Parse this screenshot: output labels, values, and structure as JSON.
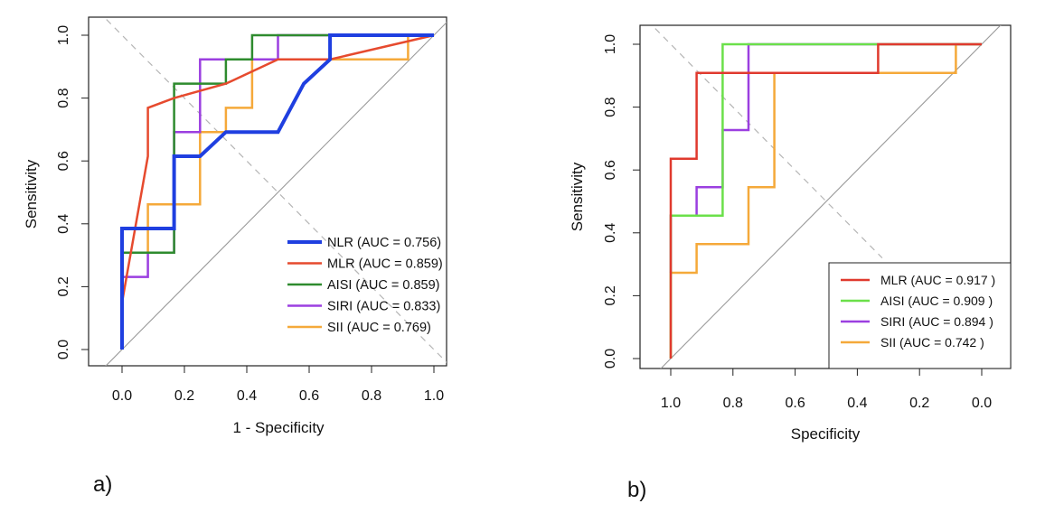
{
  "chart_data": [
    {
      "panel_label": "a)",
      "type": "line",
      "xlabel": "1 - Specificity",
      "ylabel": "Sensitivity",
      "xlim": [
        0,
        1
      ],
      "ylim": [
        0,
        1
      ],
      "x_ticks": [
        "0.0",
        "0.2",
        "0.4",
        "0.6",
        "0.8",
        "1.0"
      ],
      "y_ticks": [
        "0.0",
        "0.2",
        "0.4",
        "0.6",
        "0.8",
        "1.0"
      ],
      "legend_position": "bottom-right",
      "series": [
        {
          "name": "NLR (AUC = 0.756)",
          "color": "#1f3fe0",
          "width": 4,
          "x": [
            0,
            0,
            0.167,
            0.167,
            0.25,
            0.333,
            0.5,
            0.583,
            0.667,
            0.667,
            1
          ],
          "y": [
            0,
            0.385,
            0.385,
            0.615,
            0.615,
            0.692,
            0.692,
            0.846,
            0.923,
            1,
            1
          ]
        },
        {
          "name": "MLR (AUC = 0.859)",
          "color": "#e64a2e",
          "width": 2.5,
          "x": [
            0,
            0.083,
            0.083,
            0.167,
            0.333,
            0.5,
            0.667,
            1
          ],
          "y": [
            0.15,
            0.615,
            0.769,
            0.8,
            0.846,
            0.923,
            0.923,
            1
          ]
        },
        {
          "name": "AISI (AUC = 0.859)",
          "color": "#2e8b2e",
          "width": 2.5,
          "x": [
            0,
            0,
            0.167,
            0.167,
            0.333,
            0.333,
            0.417,
            0.417,
            1
          ],
          "y": [
            0,
            0.308,
            0.308,
            0.846,
            0.846,
            0.923,
            0.923,
            1,
            1
          ]
        },
        {
          "name": "SIRI (AUC = 0.833)",
          "color": "#9b3fe0",
          "width": 2.5,
          "x": [
            0,
            0,
            0.083,
            0.083,
            0.167,
            0.167,
            0.25,
            0.25,
            0.5,
            0.5,
            1
          ],
          "y": [
            0,
            0.231,
            0.231,
            0.308,
            0.308,
            0.692,
            0.692,
            0.923,
            0.923,
            1,
            1
          ]
        },
        {
          "name": "SII (AUC = 0.769)",
          "color": "#f5a93a",
          "width": 2.5,
          "x": [
            0,
            0,
            0.083,
            0.083,
            0.25,
            0.25,
            0.333,
            0.333,
            0.417,
            0.417,
            0.917,
            0.917,
            1
          ],
          "y": [
            0,
            0.308,
            0.308,
            0.462,
            0.462,
            0.692,
            0.692,
            0.769,
            0.769,
            0.923,
            0.923,
            1,
            1
          ]
        }
      ]
    },
    {
      "panel_label": "b)",
      "type": "line",
      "xlabel": "Specificity",
      "ylabel": "Sensitivity",
      "xlim": [
        1,
        0
      ],
      "ylim": [
        0,
        1
      ],
      "x_ticks": [
        "1.0",
        "0.8",
        "0.6",
        "0.4",
        "0.2",
        "0.0"
      ],
      "y_ticks": [
        "0.0",
        "0.2",
        "0.4",
        "0.6",
        "0.8",
        "1.0"
      ],
      "legend_position": "bottom-right",
      "series": [
        {
          "name": "MLR (AUC = 0.917 )",
          "color": "#e03a2e",
          "width": 2.5,
          "x": [
            1,
            1,
            0.917,
            0.917,
            0.333,
            0.333,
            0
          ],
          "y": [
            0,
            0.636,
            0.636,
            0.909,
            0.909,
            1,
            1
          ]
        },
        {
          "name": "AISI (AUC = 0.909 )",
          "color": "#6be04a",
          "width": 2.5,
          "x": [
            1,
            1,
            0.833,
            0.833,
            0
          ],
          "y": [
            0,
            0.455,
            0.455,
            1,
            1
          ]
        },
        {
          "name": "SIRI (AUC = 0.894 )",
          "color": "#9b3fe0",
          "width": 2.5,
          "x": [
            1,
            1,
            0.917,
            0.917,
            0.833,
            0.833,
            0.75,
            0.75,
            0
          ],
          "y": [
            0.273,
            0.455,
            0.455,
            0.545,
            0.545,
            0.727,
            0.727,
            1,
            1
          ]
        },
        {
          "name": "SII (AUC = 0.742 )",
          "color": "#f5a93a",
          "width": 2.5,
          "x": [
            1,
            1,
            0.917,
            0.917,
            0.75,
            0.75,
            0.667,
            0.667,
            0.083,
            0.083,
            0
          ],
          "y": [
            0,
            0.273,
            0.273,
            0.364,
            0.364,
            0.545,
            0.545,
            0.909,
            0.909,
            1,
            1
          ]
        }
      ]
    }
  ]
}
